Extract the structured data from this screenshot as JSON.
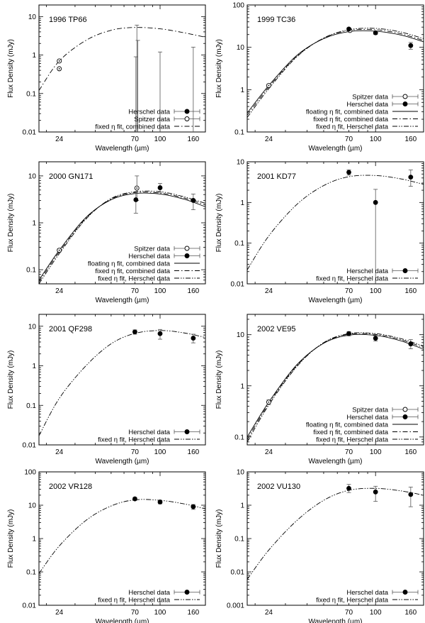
{
  "figure": {
    "xlabel": "Wavelength (µm)",
    "ylabel": "Flux Density (mJy)",
    "xlim": [
      18,
      190
    ],
    "xticks": [
      24,
      70,
      100,
      160
    ],
    "legend_labels": {
      "spitzer": "Spitzer data",
      "herschel": "Herschel data",
      "floating": "floating η fit, combined data",
      "fixed_combined": "fixed η fit, combined data",
      "fixed_herschel": "fixed η fit, Herschel data"
    }
  },
  "chart_data": [
    {
      "type": "scatter",
      "title": "1996 TP66",
      "xlabel": "Wavelength (µm)",
      "ylabel": "Flux Density (mJy)",
      "xlim": [
        18,
        190
      ],
      "ylim": [
        0.01,
        20
      ],
      "xscale": "log",
      "yscale": "log",
      "yticks": [
        0.01,
        0.1,
        1,
        10
      ],
      "ytick_labels": [
        "0.01",
        "0.1",
        "1",
        "10"
      ],
      "legend": [
        "herschel",
        "spitzer",
        "fixed_combined"
      ],
      "points": [
        {
          "set": "spitzer",
          "x": 24,
          "y": 0.7
        },
        {
          "set": "spitzer",
          "x": 24,
          "y": 0.44
        },
        {
          "set": "herschel",
          "x": 71,
          "y": null,
          "ylo": 0.01,
          "yhi": 0.9
        },
        {
          "set": "herschel",
          "x": 72,
          "y": null,
          "ylo": 0.01,
          "yhi": 6.0
        },
        {
          "set": "herschel",
          "x": 73,
          "y": null,
          "ylo": 0.01,
          "yhi": 2.4
        },
        {
          "set": "herschel",
          "x": 100,
          "y": null,
          "ylo": 0.01,
          "yhi": 1.2
        },
        {
          "set": "herschel",
          "x": 160,
          "y": null,
          "ylo": 0.01,
          "yhi": 1.6
        }
      ],
      "series": [
        {
          "name": "fixed η fit, combined data",
          "style": "dashdot",
          "x": [
            18,
            24,
            35,
            50,
            70,
            100,
            140,
            190
          ],
          "y": [
            0.12,
            0.7,
            2.4,
            4.4,
            5.2,
            4.8,
            3.8,
            2.9
          ]
        }
      ]
    },
    {
      "type": "scatter",
      "title": "1999 TC36",
      "xlabel": "Wavelength (µm)",
      "ylabel": "Flux Density (mJy)",
      "xlim": [
        18,
        190
      ],
      "ylim": [
        0.1,
        100
      ],
      "xscale": "log",
      "yscale": "log",
      "yticks": [
        0.1,
        1,
        10,
        100
      ],
      "ytick_labels": [
        "0.1",
        "1",
        "10",
        "100"
      ],
      "legend": [
        "spitzer",
        "herschel",
        "floating",
        "fixed_combined",
        "fixed_herschel"
      ],
      "points": [
        {
          "set": "spitzer",
          "x": 24,
          "y": 1.25,
          "yerr": 0.1
        },
        {
          "set": "spitzer",
          "x": 71,
          "y": 25.0,
          "yerr": 1.0
        },
        {
          "set": "herschel",
          "x": 70,
          "y": 27.0,
          "yerr": 2.0
        },
        {
          "set": "herschel",
          "x": 100,
          "y": 22.0,
          "yerr": 2.0
        },
        {
          "set": "herschel",
          "x": 160,
          "y": 11.0,
          "yerr": 2.0
        }
      ],
      "series": [
        {
          "name": "floating η fit, combined data",
          "style": "solid",
          "x": [
            18,
            24,
            35,
            50,
            70,
            100,
            140,
            190
          ],
          "y": [
            0.28,
            1.25,
            6.5,
            16,
            23.5,
            24,
            19.5,
            13.5
          ]
        },
        {
          "name": "fixed η fit, combined data",
          "style": "dashdot",
          "x": [
            18,
            24,
            35,
            50,
            70,
            100,
            140,
            190
          ],
          "y": [
            0.25,
            1.15,
            6.2,
            16.5,
            25,
            26,
            21,
            14.5
          ]
        },
        {
          "name": "fixed η fit, Herschel data",
          "style": "dashdotdot",
          "x": [
            18,
            24,
            35,
            50,
            70,
            100,
            140,
            190
          ],
          "y": [
            0.22,
            1.05,
            6.0,
            16.5,
            26,
            28,
            23,
            16
          ]
        }
      ]
    },
    {
      "type": "scatter",
      "title": "2000 GN171",
      "xlabel": "Wavelength (µm)",
      "ylabel": "Flux Density (mJy)",
      "xlim": [
        18,
        190
      ],
      "ylim": [
        0.05,
        20
      ],
      "xscale": "log",
      "yscale": "log",
      "yticks": [
        0.1,
        1,
        10
      ],
      "ytick_labels": [
        "0.1",
        "1",
        "10"
      ],
      "legend": [
        "spitzer",
        "herschel",
        "floating",
        "fixed_combined",
        "fixed_herschel"
      ],
      "points": [
        {
          "set": "spitzer",
          "x": 24,
          "y": 0.26,
          "yerr": 0.02
        },
        {
          "set": "spitzer",
          "x": 72,
          "y": 5.5,
          "ylo": 3.0,
          "yhi": 10.0
        },
        {
          "set": "herschel",
          "x": 71,
          "y": 3.1,
          "ylo": 1.6,
          "yhi": 4.5
        },
        {
          "set": "herschel",
          "x": 100,
          "y": 5.6,
          "ylo": 4.5,
          "yhi": 6.9
        },
        {
          "set": "herschel",
          "x": 160,
          "y": 3.0,
          "ylo": 1.9,
          "yhi": 4.1
        }
      ],
      "series": [
        {
          "name": "floating η fit, combined data",
          "style": "solid",
          "x": [
            18,
            24,
            35,
            50,
            70,
            100,
            140,
            190
          ],
          "y": [
            0.06,
            0.26,
            1.3,
            3.1,
            4.2,
            4.1,
            3.2,
            2.2
          ]
        },
        {
          "name": "fixed η fit, combined data",
          "style": "dashdot",
          "x": [
            18,
            24,
            35,
            50,
            70,
            100,
            140,
            190
          ],
          "y": [
            0.055,
            0.24,
            1.25,
            3.2,
            4.4,
            4.3,
            3.4,
            2.4
          ]
        },
        {
          "name": "fixed η fit, Herschel data",
          "style": "dashdotdot",
          "x": [
            18,
            24,
            35,
            50,
            70,
            100,
            140,
            190
          ],
          "y": [
            0.05,
            0.22,
            1.2,
            3.3,
            4.6,
            4.6,
            3.6,
            2.6
          ]
        }
      ]
    },
    {
      "type": "scatter",
      "title": "2001 KD77",
      "xlabel": "Wavelength (µm)",
      "ylabel": "Flux Density (mJy)",
      "xlim": [
        18,
        190
      ],
      "ylim": [
        0.01,
        10
      ],
      "xscale": "log",
      "yscale": "log",
      "yticks": [
        0.01,
        0.1,
        1,
        10
      ],
      "ytick_labels": [
        "0.01",
        "0.1",
        "1",
        "10"
      ],
      "legend": [
        "herschel",
        "fixed_herschel"
      ],
      "points": [
        {
          "set": "herschel",
          "x": 70,
          "y": 5.5,
          "yerr": 0.8
        },
        {
          "set": "herschel",
          "x": 100,
          "y": 1.0,
          "ylo": 0.01,
          "yhi": 2.1
        },
        {
          "set": "herschel",
          "x": 160,
          "y": 4.2,
          "ylo": 2.5,
          "yhi": 6.3
        }
      ],
      "series": [
        {
          "name": "fixed η fit, Herschel data",
          "style": "dashdotdot",
          "x": [
            18,
            24,
            35,
            50,
            70,
            100,
            140,
            190
          ],
          "y": [
            0.022,
            0.15,
            0.9,
            2.6,
            4.3,
            4.6,
            3.8,
            2.8
          ]
        }
      ]
    },
    {
      "type": "scatter",
      "title": "2001 QF298",
      "xlabel": "Wavelength (µm)",
      "ylabel": "Flux Density (mJy)",
      "xlim": [
        18,
        190
      ],
      "ylim": [
        0.01,
        20
      ],
      "xscale": "log",
      "yscale": "log",
      "yticks": [
        0.01,
        0.1,
        1,
        10
      ],
      "ytick_labels": [
        "0.01",
        "0.1",
        "1",
        "10"
      ],
      "legend": [
        "herschel",
        "fixed_herschel"
      ],
      "points": [
        {
          "set": "herschel",
          "x": 70,
          "y": 7.2,
          "yerr": 0.9
        },
        {
          "set": "herschel",
          "x": 100,
          "y": 6.5,
          "ylo": 4.7,
          "yhi": 8.3
        },
        {
          "set": "herschel",
          "x": 160,
          "y": 5.0,
          "ylo": 3.8,
          "yhi": 6.3
        }
      ],
      "series": [
        {
          "name": "fixed η fit, Herschel data",
          "style": "dashdotdot",
          "x": [
            18,
            24,
            35,
            50,
            70,
            100,
            140,
            190
          ],
          "y": [
            0.017,
            0.15,
            1.0,
            3.6,
            6.6,
            7.8,
            6.8,
            5.2
          ]
        }
      ]
    },
    {
      "type": "scatter",
      "title": "2002 VE95",
      "xlabel": "Wavelength (µm)",
      "ylabel": "Flux Density (mJy)",
      "xlim": [
        18,
        190
      ],
      "ylim": [
        0.07,
        25
      ],
      "xscale": "log",
      "yscale": "log",
      "yticks": [
        0.1,
        1,
        10
      ],
      "ytick_labels": [
        "0.1",
        "1",
        "10"
      ],
      "legend": [
        "spitzer",
        "herschel",
        "floating",
        "fixed_combined",
        "fixed_herschel"
      ],
      "points": [
        {
          "set": "spitzer",
          "x": 24,
          "y": 0.48,
          "yerr": 0.05
        },
        {
          "set": "herschel",
          "x": 70,
          "y": 10.5,
          "yerr": 1.0
        },
        {
          "set": "herschel",
          "x": 100,
          "y": 8.5,
          "yerr": 1.0
        },
        {
          "set": "herschel",
          "x": 160,
          "y": 6.6,
          "ylo": 5.3,
          "yhi": 8.0
        }
      ],
      "series": [
        {
          "name": "floating η fit, combined data",
          "style": "solid",
          "x": [
            18,
            24,
            35,
            50,
            70,
            100,
            140,
            190
          ],
          "y": [
            0.1,
            0.48,
            2.6,
            6.8,
            9.8,
            9.7,
            7.6,
            5.2
          ]
        },
        {
          "name": "fixed η fit, combined data",
          "style": "dashdot",
          "x": [
            18,
            24,
            35,
            50,
            70,
            100,
            140,
            190
          ],
          "y": [
            0.09,
            0.45,
            2.5,
            6.9,
            10.2,
            10.1,
            8.0,
            5.6
          ]
        },
        {
          "name": "fixed η fit, Herschel data",
          "style": "dashdotdot",
          "x": [
            18,
            24,
            35,
            50,
            70,
            100,
            140,
            190
          ],
          "y": [
            0.08,
            0.42,
            2.4,
            7.0,
            10.5,
            10.5,
            8.4,
            6.0
          ]
        }
      ]
    },
    {
      "type": "scatter",
      "title": "2002 VR128",
      "xlabel": "Wavelength (µm)",
      "ylabel": "Flux Density (mJy)",
      "xlim": [
        18,
        190
      ],
      "ylim": [
        0.01,
        100
      ],
      "xscale": "log",
      "yscale": "log",
      "yticks": [
        0.01,
        0.1,
        1,
        10,
        100
      ],
      "ytick_labels": [
        "0.01",
        "0.1",
        "1",
        "10",
        "100"
      ],
      "legend": [
        "herschel",
        "fixed_herschel"
      ],
      "points": [
        {
          "set": "herschel",
          "x": 70,
          "y": 15.5,
          "yerr": 1.5
        },
        {
          "set": "herschel",
          "x": 100,
          "y": 12.5,
          "yerr": 1.5
        },
        {
          "set": "herschel",
          "x": 160,
          "y": 9.0,
          "yerr": 1.5
        }
      ],
      "series": [
        {
          "name": "fixed η fit, Herschel data",
          "style": "dashdotdot",
          "x": [
            18,
            24,
            35,
            50,
            70,
            100,
            140,
            190
          ],
          "y": [
            0.09,
            0.6,
            3.5,
            9.5,
            14.5,
            14.0,
            11.0,
            7.8
          ]
        }
      ]
    },
    {
      "type": "scatter",
      "title": "2002 VU130",
      "xlabel": "Wavelength (µm)",
      "ylabel": "Flux Density (mJy)",
      "xlim": [
        18,
        190
      ],
      "ylim": [
        0.001,
        10
      ],
      "xscale": "log",
      "yscale": "log",
      "yticks": [
        0.001,
        0.01,
        0.1,
        1,
        10
      ],
      "ytick_labels": [
        "0.001",
        "0.01",
        "0.1",
        "1",
        "10"
      ],
      "legend": [
        "herschel",
        "fixed_herschel"
      ],
      "points": [
        {
          "set": "herschel",
          "x": 70,
          "y": 3.2,
          "ylo": 2.4,
          "yhi": 4.2
        },
        {
          "set": "herschel",
          "x": 100,
          "y": 2.5,
          "ylo": 1.3,
          "yhi": 3.7
        },
        {
          "set": "herschel",
          "x": 160,
          "y": 2.1,
          "ylo": 0.9,
          "yhi": 3.5
        }
      ],
      "series": [
        {
          "name": "fixed η fit, Herschel data",
          "style": "dashdotdot",
          "x": [
            18,
            24,
            35,
            50,
            70,
            100,
            140,
            190
          ],
          "y": [
            0.006,
            0.045,
            0.35,
            1.4,
            2.8,
            3.2,
            2.7,
            2.0
          ]
        }
      ]
    }
  ]
}
